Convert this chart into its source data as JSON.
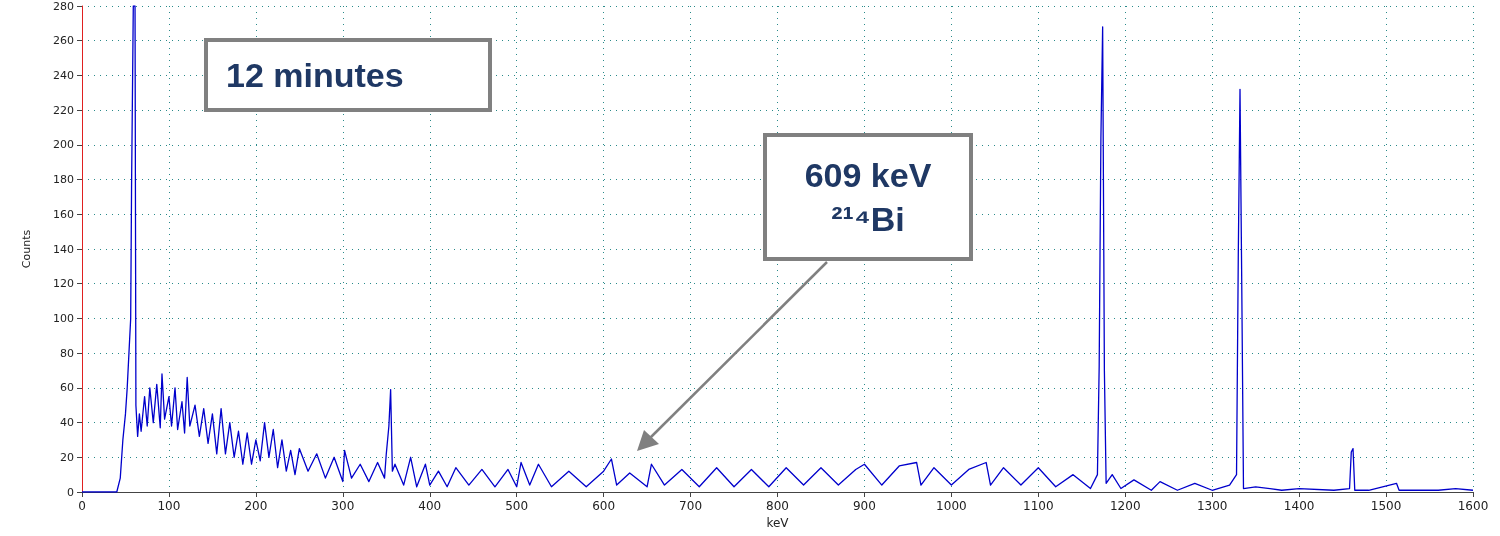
{
  "chart_data": {
    "type": "line",
    "xlabel": "keV",
    "ylabel": "Counts",
    "xlim": [
      0,
      1600
    ],
    "xticks": [
      0,
      100,
      200,
      300,
      400,
      500,
      600,
      700,
      800,
      900,
      1000,
      1100,
      1200,
      1300,
      1400,
      1500,
      1600
    ],
    "ylim": [
      0,
      280
    ],
    "yticks": [
      0,
      20,
      40,
      60,
      80,
      100,
      120,
      140,
      160,
      180,
      200,
      220,
      240,
      260,
      280
    ],
    "grid": true,
    "marker": "none",
    "line_style": "solid",
    "annotations": [
      "12 minutes",
      "609 keV\n²¹⁴Bi"
    ],
    "series": [
      {
        "color": "#0000cc",
        "x": [
          0,
          40,
          44,
          47,
          50,
          52,
          54,
          56,
          57,
          59,
          61,
          62,
          64,
          66,
          68,
          72,
          75,
          78,
          82,
          86,
          90,
          92,
          95,
          100,
          103,
          107,
          110,
          115,
          118,
          121,
          124,
          130,
          135,
          140,
          145,
          150,
          155,
          160,
          165,
          170,
          175,
          180,
          185,
          190,
          195,
          200,
          205,
          210,
          215,
          220,
          225,
          230,
          235,
          240,
          245,
          250,
          260,
          270,
          280,
          290,
          300,
          302,
          310,
          320,
          330,
          340,
          348,
          350,
          353,
          355,
          357,
          360,
          370,
          378,
          385,
          395,
          400,
          410,
          420,
          430,
          445,
          460,
          475,
          490,
          500,
          505,
          515,
          525,
          540,
          560,
          580,
          600,
          609,
          615,
          630,
          650,
          655,
          670,
          690,
          710,
          730,
          750,
          770,
          790,
          810,
          830,
          850,
          870,
          890,
          900,
          920,
          940,
          960,
          965,
          980,
          1000,
          1020,
          1040,
          1045,
          1060,
          1080,
          1100,
          1120,
          1140,
          1160,
          1168,
          1170,
          1172,
          1174,
          1176,
          1178,
          1185,
          1195,
          1210,
          1230,
          1240,
          1260,
          1280,
          1300,
          1320,
          1328,
          1330,
          1332,
          1334,
          1336,
          1350,
          1380,
          1400,
          1440,
          1458,
          1460,
          1462,
          1464,
          1480,
          1512,
          1515,
          1560,
          1580,
          1600
        ],
        "values": [
          0,
          0,
          8,
          30,
          45,
          60,
          80,
          100,
          175,
          280,
          280,
          50,
          32,
          45,
          35,
          55,
          38,
          60,
          40,
          62,
          37,
          68,
          42,
          55,
          38,
          60,
          36,
          52,
          34,
          66,
          38,
          50,
          32,
          48,
          28,
          45,
          22,
          48,
          22,
          40,
          20,
          35,
          16,
          34,
          16,
          30,
          18,
          40,
          20,
          36,
          14,
          30,
          12,
          24,
          10,
          25,
          12,
          22,
          8,
          20,
          6,
          24,
          8,
          16,
          6,
          17,
          8,
          22,
          38,
          59,
          12,
          16,
          4,
          20,
          3,
          16,
          4,
          12,
          3,
          14,
          4,
          13,
          3,
          13,
          3,
          17,
          4,
          16,
          3,
          12,
          3,
          12,
          19,
          4,
          11,
          3,
          16,
          4,
          13,
          3,
          14,
          3,
          13,
          3,
          14,
          4,
          14,
          4,
          13,
          16,
          4,
          15,
          17,
          4,
          14,
          4,
          13,
          17,
          4,
          14,
          4,
          14,
          3,
          10,
          2,
          10,
          72,
          204,
          268,
          70,
          5,
          10,
          2,
          7,
          1,
          6,
          1,
          5,
          1,
          4,
          10,
          135,
          232,
          120,
          2,
          3,
          1,
          2,
          1,
          2,
          23,
          25,
          1,
          1,
          5,
          1,
          1,
          2,
          1
        ]
      }
    ]
  }
}
